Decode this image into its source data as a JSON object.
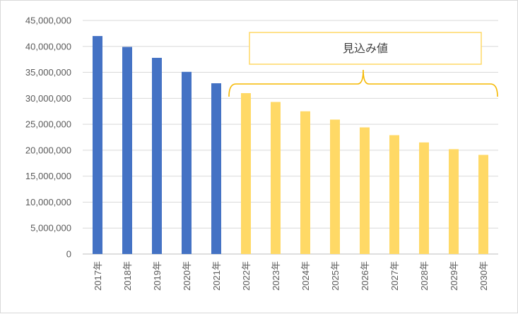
{
  "chart_data": {
    "type": "bar",
    "categories": [
      "2017年",
      "2018年",
      "2019年",
      "2020年",
      "2021年",
      "2022年",
      "2023年",
      "2024年",
      "2025年",
      "2026年",
      "2027年",
      "2028年",
      "2029年",
      "2030年"
    ],
    "values": [
      42000000,
      39900000,
      37800000,
      35100000,
      32900000,
      31000000,
      29300000,
      27500000,
      25900000,
      24400000,
      22900000,
      21500000,
      20200000,
      19100000
    ],
    "actual_count": 5,
    "colors": {
      "actual": "#4472c4",
      "projected": "#ffd966",
      "bracket": "#f5b800",
      "grid": "#d9d9d9",
      "axis": "#bfbfbf"
    },
    "ylim": [
      0,
      45000000
    ],
    "ytick_step": 5000000,
    "grid": true,
    "title": "",
    "xlabel": "",
    "ylabel": "",
    "annotation": {
      "text": "見込み値",
      "from_category": "2022年",
      "to_category": "2030年"
    }
  }
}
